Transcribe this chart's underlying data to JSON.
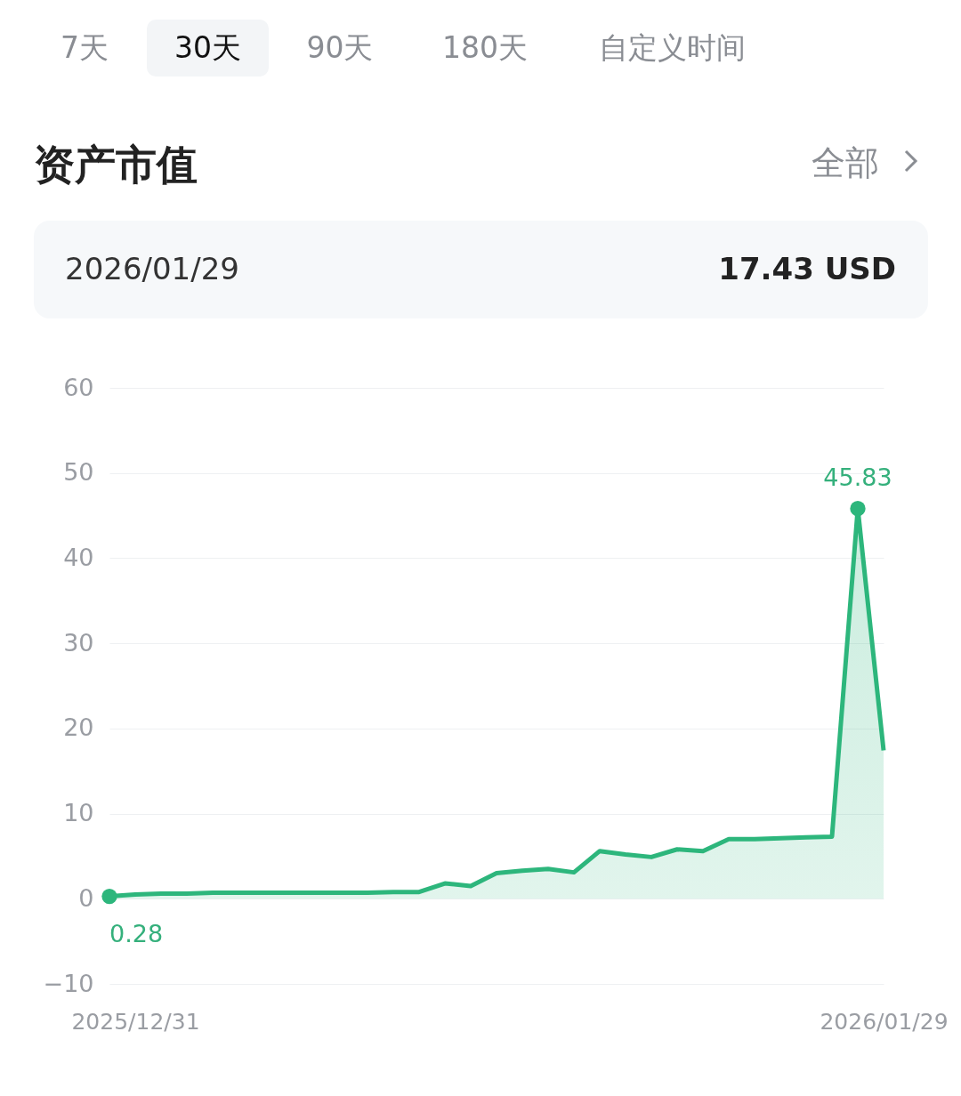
{
  "chart_data": {
    "type": "area",
    "title": "资产市值",
    "annotations": [
      "7天",
      "30天",
      "90天",
      "180天",
      "自定义时间",
      "全部",
      "2026/01/29",
      "17.43 USD"
    ],
    "categories": [
      null,
      "2025/12/31",
      null,
      null,
      null,
      null,
      null,
      null,
      null,
      null,
      null,
      null,
      null,
      null,
      null,
      null,
      null,
      null,
      null,
      null,
      null,
      null,
      null,
      null,
      null,
      null,
      null,
      null,
      null,
      null,
      "2026/01/29"
    ],
    "series": [
      {
        "color": "#2db67c",
        "values": [
          0.28,
          0.5,
          0.6,
          0.6,
          0.7,
          0.7,
          0.7,
          0.7,
          0.7,
          0.7,
          0.7,
          0.8,
          0.8,
          1.8,
          1.5,
          3.0,
          3.3,
          3.5,
          3.1,
          5.6,
          5.2,
          4.9,
          5.8,
          5.6,
          7.0,
          7.0,
          7.1,
          7.2,
          7.3,
          45.83,
          17.43
        ],
        "value_labels": [
          "0.28",
          null,
          null,
          null,
          null,
          null,
          null,
          null,
          null,
          null,
          null,
          null,
          null,
          null,
          null,
          null,
          null,
          null,
          null,
          null,
          null,
          null,
          null,
          null,
          null,
          null,
          null,
          null,
          null,
          "45.83",
          null
        ]
      }
    ],
    "ylim": [
      -10,
      60
    ],
    "yticks": [
      -10,
      0,
      10,
      20,
      30,
      40,
      50,
      60
    ],
    "grid": "y"
  }
}
